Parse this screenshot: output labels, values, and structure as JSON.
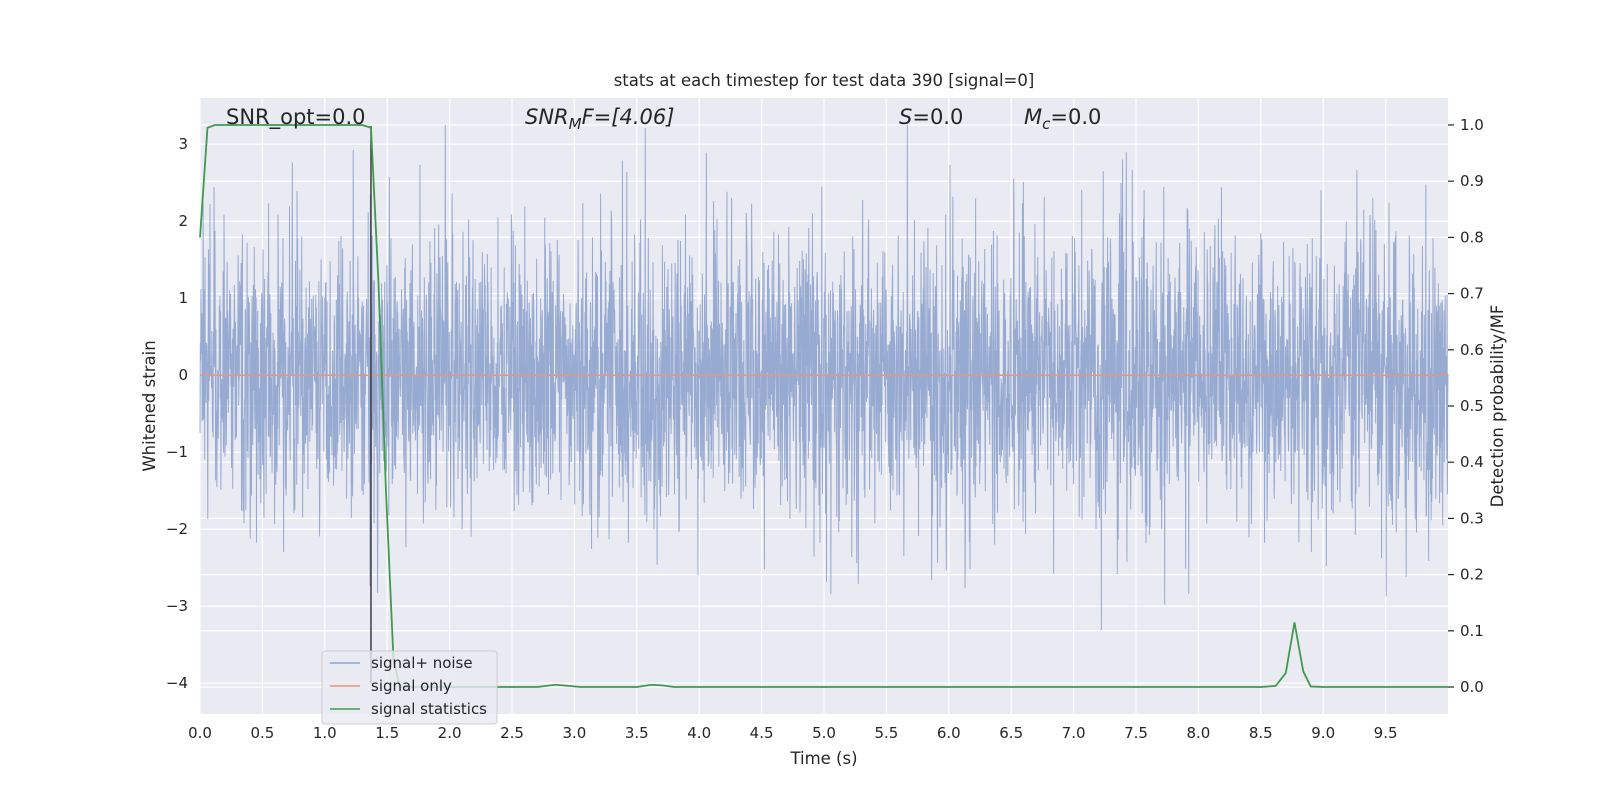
{
  "chart_data": {
    "type": "line",
    "title": "stats at each timestep for test data 390 [signal=0]",
    "xlabel": "Time (s)",
    "ylabel": "Whitened strain",
    "ylabel_right": "Detection probability/MF",
    "xlim": [
      0.0,
      10.0
    ],
    "ylim": [
      -4.4,
      3.6
    ],
    "ylim_right": [
      -0.048,
      1.048
    ],
    "x_ticks": [
      0.0,
      0.5,
      1.0,
      1.5,
      2.0,
      2.5,
      3.0,
      3.5,
      4.0,
      4.5,
      5.0,
      5.5,
      6.0,
      6.5,
      7.0,
      7.5,
      8.0,
      8.5,
      9.0,
      9.5
    ],
    "x_tick_labels": [
      "0.0",
      "0.5",
      "1.0",
      "1.5",
      "2.0",
      "2.5",
      "3.0",
      "3.5",
      "4.0",
      "4.5",
      "5.0",
      "5.5",
      "6.0",
      "6.5",
      "7.0",
      "7.5",
      "8.0",
      "8.5",
      "9.0",
      "9.5"
    ],
    "y_ticks": [
      -4,
      -3,
      -2,
      -1,
      0,
      1,
      2,
      3
    ],
    "y_tick_labels": [
      "−4",
      "−3",
      "−2",
      "−1",
      "0",
      "1",
      "2",
      "3"
    ],
    "y_ticks_right": [
      0.0,
      0.1,
      0.2,
      0.3,
      0.4,
      0.5,
      0.6,
      0.7,
      0.8,
      0.9,
      1.0
    ],
    "y_tick_labels_right": [
      "0.0",
      "0.1",
      "0.2",
      "0.3",
      "0.4",
      "0.5",
      "0.6",
      "0.7",
      "0.8",
      "0.9",
      "1.0"
    ],
    "grid": true,
    "legend_position": "lower-left",
    "vline_x": 1.37,
    "annotations": {
      "snr_opt": "SNR_opt=0.0",
      "snr_mf_base": "SNR",
      "snr_mf_sub": "M",
      "snr_mf_rest": "F=[4.06]",
      "s_var": "S",
      "s_rest": "=0.0",
      "mc_var": "M",
      "mc_sub": "c",
      "mc_rest": "=0.0"
    },
    "series": [
      {
        "name": "signal+ noise",
        "color": "#8ea3cd",
        "note": "dense whitened noise, amplitude roughly within ±2 with peaks to about ±3.3",
        "sample_rate_hz": 400,
        "seed": 390,
        "std": 0.95
      },
      {
        "name": "signal only",
        "color": "#e8967a",
        "x": [
          0.0,
          10.0
        ],
        "y": [
          0.0,
          0.0
        ]
      },
      {
        "name": "signal statistics",
        "color": "#3f9a4e",
        "x": [
          0.0,
          0.06,
          0.12,
          0.2,
          0.3,
          0.5,
          0.8,
          1.0,
          1.2,
          1.3,
          1.37,
          1.43,
          1.49,
          1.55,
          1.6,
          1.8,
          2.0,
          2.5,
          2.7,
          2.85,
          2.95,
          3.05,
          3.3,
          3.5,
          3.62,
          3.7,
          3.8,
          4.0,
          5.0,
          6.0,
          7.0,
          8.0,
          8.5,
          8.62,
          8.7,
          8.77,
          8.84,
          8.9,
          9.0,
          9.5,
          10.0
        ],
        "y": [
          0.8,
          0.995,
          1.0,
          1.0,
          1.0,
          1.0,
          1.0,
          1.0,
          1.0,
          1.0,
          0.995,
          0.72,
          0.35,
          0.05,
          0.0,
          0.0,
          0.0,
          0.0,
          0.0,
          0.004,
          0.002,
          0.0,
          0.0,
          0.0,
          0.004,
          0.003,
          0.0,
          0.0,
          0.0,
          0.0,
          0.0,
          0.0,
          0.0,
          0.002,
          0.025,
          0.115,
          0.028,
          0.001,
          0.0,
          0.0,
          0.0
        ]
      }
    ]
  }
}
